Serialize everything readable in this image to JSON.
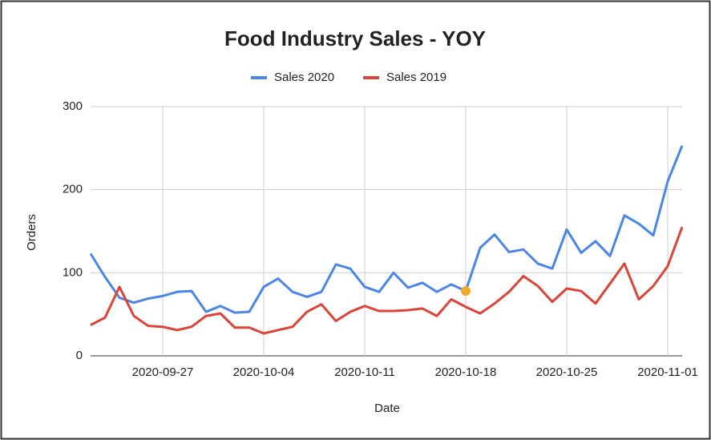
{
  "chart_data": {
    "type": "line",
    "title": "Food Industry Sales - YOY",
    "x_label": "Date",
    "y_label": "Orders",
    "x": [
      "2020-09-22",
      "2020-09-23",
      "2020-09-24",
      "2020-09-25",
      "2020-09-26",
      "2020-09-27",
      "2020-09-28",
      "2020-09-29",
      "2020-09-30",
      "2020-10-01",
      "2020-10-02",
      "2020-10-03",
      "2020-10-04",
      "2020-10-05",
      "2020-10-06",
      "2020-10-07",
      "2020-10-08",
      "2020-10-09",
      "2020-10-10",
      "2020-10-11",
      "2020-10-12",
      "2020-10-13",
      "2020-10-14",
      "2020-10-15",
      "2020-10-16",
      "2020-10-17",
      "2020-10-18",
      "2020-10-19",
      "2020-10-20",
      "2020-10-21",
      "2020-10-22",
      "2020-10-23",
      "2020-10-24",
      "2020-10-25",
      "2020-10-26",
      "2020-10-27",
      "2020-10-28",
      "2020-10-29",
      "2020-10-30",
      "2020-10-31",
      "2020-11-01",
      "2020-11-02"
    ],
    "series": [
      {
        "name": "Sales 2020",
        "color": "#4a86e8",
        "values": [
          123,
          95,
          70,
          64,
          69,
          72,
          77,
          78,
          53,
          60,
          52,
          53,
          83,
          93,
          77,
          71,
          77,
          110,
          105,
          83,
          77,
          100,
          82,
          88,
          77,
          86,
          78,
          130,
          146,
          125,
          128,
          111,
          105,
          152,
          124,
          138,
          120,
          169,
          159,
          145,
          210,
          253
        ]
      },
      {
        "name": "Sales 2019",
        "color": "#db4437",
        "values": [
          37,
          46,
          83,
          48,
          36,
          35,
          31,
          35,
          48,
          51,
          34,
          34,
          27,
          31,
          35,
          53,
          62,
          42,
          53,
          60,
          54,
          54,
          55,
          57,
          48,
          68,
          59,
          51,
          63,
          77,
          96,
          84,
          65,
          81,
          78,
          63,
          87,
          111,
          68,
          84,
          108,
          155
        ]
      }
    ],
    "highlight_point": {
      "series": 0,
      "index": 26,
      "color": "#f4a92a"
    },
    "xlim": [
      "2020-09-22",
      "2020-11-02"
    ],
    "xticks": [
      "2020-09-27",
      "2020-10-04",
      "2020-10-11",
      "2020-10-18",
      "2020-10-25",
      "2020-11-01"
    ],
    "ylim": [
      0,
      300
    ],
    "yticks": [
      0,
      100,
      200,
      300
    ],
    "grid": true,
    "legend": "top"
  }
}
